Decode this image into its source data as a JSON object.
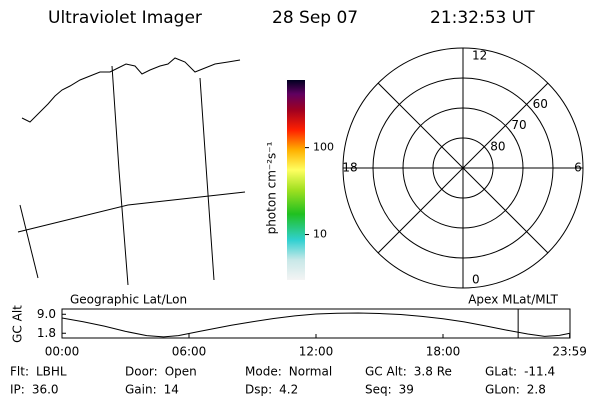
{
  "header": {
    "title": "Ultraviolet Imager",
    "date": "28 Sep 07",
    "time": "21:32:53 UT"
  },
  "colorbar": {
    "label": "photon cm⁻²s⁻¹",
    "lim": [
      3,
      600
    ],
    "ticks": [
      10,
      100
    ],
    "log": true
  },
  "polar": {
    "lat_lim": [
      50,
      90
    ],
    "lat_ticks": [
      60,
      70,
      80
    ],
    "mlt_lim": [
      0,
      24
    ],
    "mlt_ticks": [
      12,
      6,
      0,
      18
    ]
  },
  "chart_data": {
    "type": "line",
    "ylabel": "GC Alt",
    "annotations": [
      "Geographic Lat/Lon",
      "Apex MLat/MLT"
    ],
    "x": [
      0,
      1,
      2,
      3,
      4,
      4.8,
      5.5,
      6.5,
      8,
      9,
      10,
      11,
      12,
      13,
      14,
      15,
      16,
      17,
      18,
      19,
      20,
      21,
      22,
      22.8,
      23.5,
      24
    ],
    "values": [
      7.6,
      6.2,
      4.5,
      2.5,
      0.9,
      0.4,
      0.9,
      2.5,
      4.8,
      6.2,
      7.4,
      8.4,
      9.1,
      9.4,
      9.5,
      9.3,
      8.9,
      8.2,
      7.3,
      6.1,
      4.6,
      3.0,
      1.5,
      0.6,
      1.0,
      1.8
    ],
    "color": "#000000",
    "xlim": [
      0,
      24
    ],
    "xticks": [
      {
        "value": 0,
        "label": "00:00"
      },
      {
        "value": 6,
        "label": "06:00"
      },
      {
        "value": 12,
        "label": "12:00"
      },
      {
        "value": 18,
        "label": "18:00"
      },
      {
        "value": 23.983,
        "label": "23:59"
      }
    ],
    "ylim": [
      0,
      11
    ],
    "yticks": [
      {
        "value": 9,
        "label": "9.0"
      },
      1.8
    ],
    "marker_x": 21.55,
    "marker_color": "#ff0000"
  },
  "status": [
    [
      {
        "key": "Flt:",
        "value": "LBHL"
      },
      {
        "key": "Door:",
        "value": "Open"
      },
      {
        "key": "Mode:",
        "value": "Normal"
      },
      {
        "key": "GC Alt:",
        "value": "3.8 Re"
      },
      {
        "key": "GLat:",
        "value": "-11.4"
      }
    ],
    [
      {
        "key": "IP:",
        "value": "36.0"
      },
      {
        "key": "Gain:",
        "value": "14"
      },
      {
        "key": "Dsp:",
        "value": "4.2"
      },
      {
        "key": "Seq:",
        "value": "39"
      },
      {
        "key": "GLon:",
        "value": "2.8"
      }
    ]
  ]
}
